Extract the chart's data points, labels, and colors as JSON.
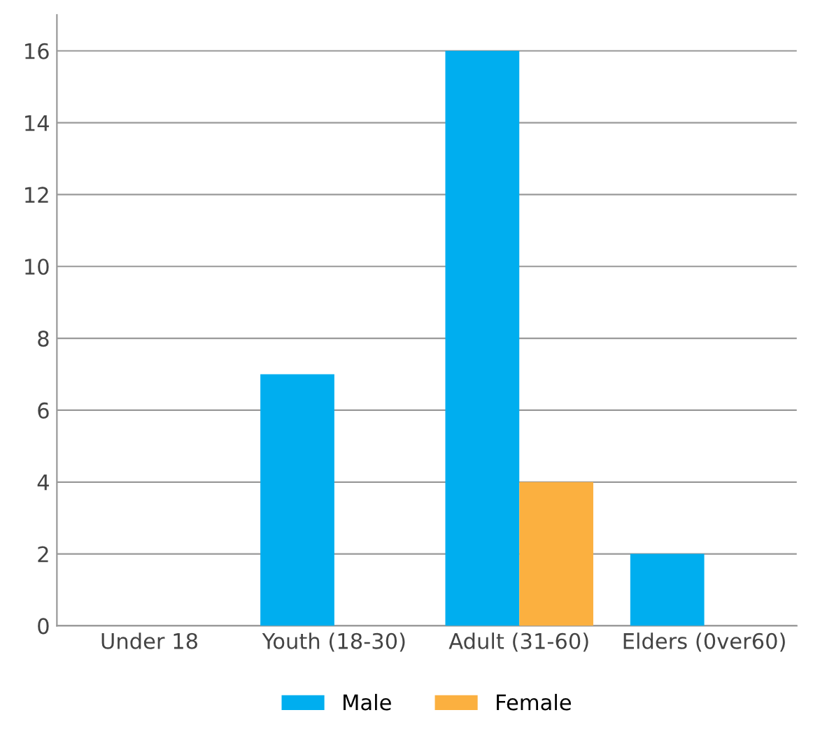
{
  "chart_data": {
    "type": "bar",
    "categories": [
      "Under 18",
      "Youth (18-30)",
      "Adult (31-60)",
      "Elders (0ver60)"
    ],
    "series": [
      {
        "name": "Male",
        "color": "#00aeef",
        "values": [
          0,
          7,
          16,
          2
        ]
      },
      {
        "name": "Female",
        "color": "#fbb040",
        "values": [
          0,
          0,
          4,
          0
        ]
      }
    ],
    "ylim": [
      0,
      17
    ],
    "yticks": [
      0,
      2,
      4,
      6,
      8,
      10,
      12,
      14,
      16
    ],
    "grid": "y",
    "legend": "bottom"
  }
}
